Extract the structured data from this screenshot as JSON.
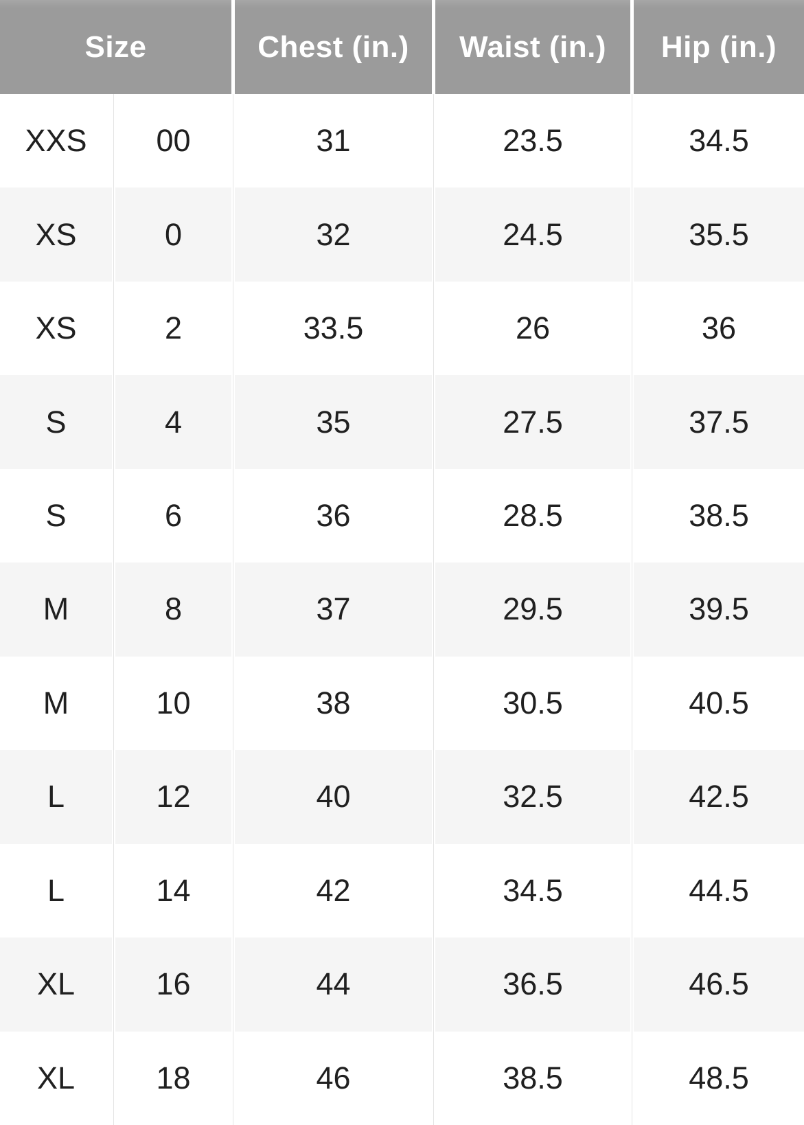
{
  "chart_data": {
    "type": "table",
    "columns": [
      "Size",
      "Chest (in.)",
      "Waist (in.)",
      "Hip (in.)"
    ],
    "size_column_subfields": [
      "letter",
      "number"
    ],
    "rows": [
      {
        "letter": "XXS",
        "number": "00",
        "chest": "31",
        "waist": "23.5",
        "hip": "34.5"
      },
      {
        "letter": "XS",
        "number": "0",
        "chest": "32",
        "waist": "24.5",
        "hip": "35.5"
      },
      {
        "letter": "XS",
        "number": "2",
        "chest": "33.5",
        "waist": "26",
        "hip": "36"
      },
      {
        "letter": "S",
        "number": "4",
        "chest": "35",
        "waist": "27.5",
        "hip": "37.5"
      },
      {
        "letter": "S",
        "number": "6",
        "chest": "36",
        "waist": "28.5",
        "hip": "38.5"
      },
      {
        "letter": "M",
        "number": "8",
        "chest": "37",
        "waist": "29.5",
        "hip": "39.5"
      },
      {
        "letter": "M",
        "number": "10",
        "chest": "38",
        "waist": "30.5",
        "hip": "40.5"
      },
      {
        "letter": "L",
        "number": "12",
        "chest": "40",
        "waist": "32.5",
        "hip": "42.5"
      },
      {
        "letter": "L",
        "number": "14",
        "chest": "42",
        "waist": "34.5",
        "hip": "44.5"
      },
      {
        "letter": "XL",
        "number": "16",
        "chest": "44",
        "waist": "36.5",
        "hip": "46.5"
      },
      {
        "letter": "XL",
        "number": "18",
        "chest": "46",
        "waist": "38.5",
        "hip": "48.5"
      }
    ],
    "layout_hints": {
      "striped_rows": true,
      "first_data_row_background": "white",
      "header_spans_two_size_subcolumns": true
    }
  },
  "colors": {
    "header_bg": "#9b9b9b",
    "header_text": "#ffffff",
    "row_bg": "#ffffff",
    "row_alt_bg": "#f5f5f5",
    "body_text": "#202020",
    "divider_line": "#e4e4e4"
  }
}
